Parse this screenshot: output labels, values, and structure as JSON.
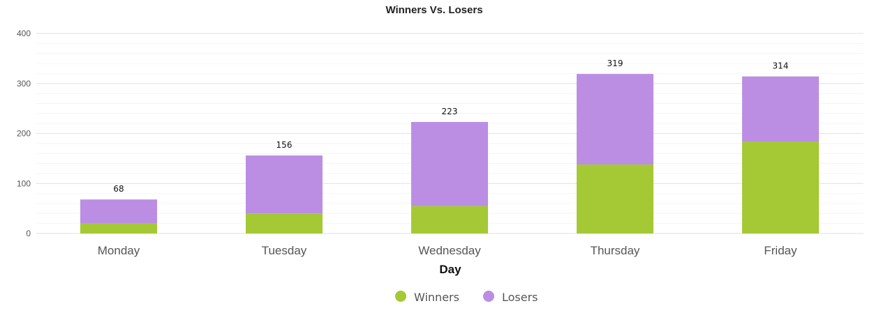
{
  "chart_data": {
    "type": "bar",
    "stacked": true,
    "title": "Winners Vs. Losers",
    "xlabel": "Day",
    "ylabel": "",
    "categories": [
      "Monday",
      "Tuesday",
      "Wednesday",
      "Thursday",
      "Friday"
    ],
    "series": [
      {
        "name": "Winners",
        "color": "#a4c935",
        "values": [
          20,
          40,
          55,
          138,
          184
        ]
      },
      {
        "name": "Losers",
        "color": "#bb8ee3",
        "values": [
          48,
          116,
          168,
          181,
          130
        ]
      }
    ],
    "totals": [
      68,
      156,
      223,
      319,
      314
    ],
    "ylim": [
      0,
      400
    ],
    "yticks": [
      0,
      100,
      200,
      300,
      400
    ],
    "grid": true,
    "legend_position": "bottom"
  }
}
